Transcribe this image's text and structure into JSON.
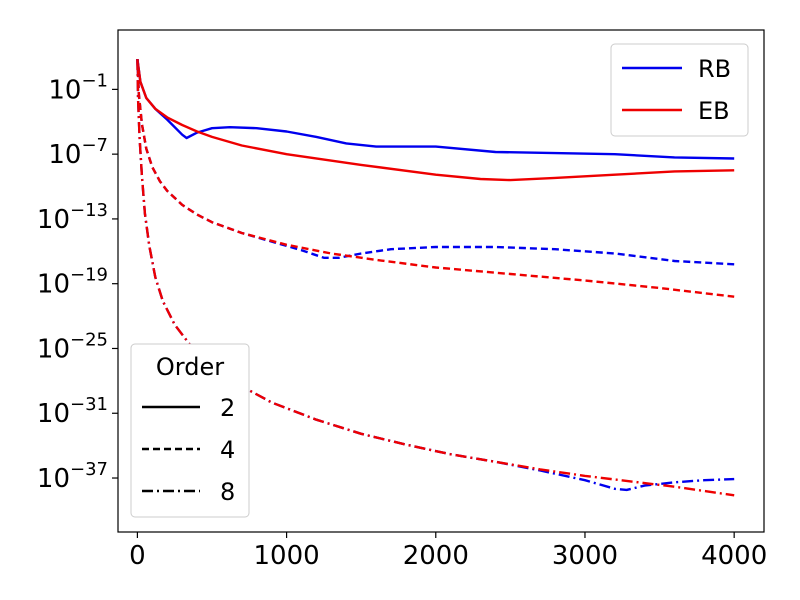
{
  "chart_data": {
    "type": "line",
    "title": "",
    "xlabel": "",
    "ylabel": "",
    "xlim": [
      -130,
      4200
    ],
    "ylog": true,
    "ylim_exponents": [
      -42,
      4.5
    ],
    "x_ticks": [
      0,
      1000,
      2000,
      3000,
      4000
    ],
    "x_tick_labels": [
      "0",
      "1000",
      "2000",
      "3000",
      "4000"
    ],
    "y_ticks": [
      -1,
      -7,
      -13,
      -19,
      -25,
      -31,
      -37
    ],
    "y_tick_labels": [
      {
        "base": "10",
        "exp": "−1"
      },
      {
        "base": "10",
        "exp": "−7"
      },
      {
        "base": "10",
        "exp": "−13"
      },
      {
        "base": "10",
        "exp": "−19"
      },
      {
        "base": "10",
        "exp": "−25"
      },
      {
        "base": "10",
        "exp": "−31"
      },
      {
        "base": "10",
        "exp": "−37"
      }
    ],
    "grid": false,
    "legend_method": {
      "placement": "top-right",
      "entries": [
        {
          "name": "RB",
          "color": "#0000ee"
        },
        {
          "name": "EB",
          "color": "#ee0000"
        }
      ]
    },
    "legend_order": {
      "placement": "bottom-left",
      "title": "Order",
      "entries": [
        {
          "name": "2",
          "style": "solid"
        },
        {
          "name": "4",
          "style": "dashed"
        },
        {
          "name": "8",
          "style": "dashdot"
        }
      ]
    },
    "series": [
      {
        "method": "RB",
        "order": "2",
        "color": "#0000ee",
        "style": "solid",
        "points": [
          [
            0,
            1.8
          ],
          [
            20,
            -0.3
          ],
          [
            60,
            -1.8
          ],
          [
            120,
            -2.8
          ],
          [
            200,
            -3.8
          ],
          [
            300,
            -5.2
          ],
          [
            330,
            -5.5
          ],
          [
            400,
            -5.0
          ],
          [
            500,
            -4.6
          ],
          [
            620,
            -4.5
          ],
          [
            800,
            -4.6
          ],
          [
            1000,
            -4.9
          ],
          [
            1200,
            -5.4
          ],
          [
            1400,
            -6.0
          ],
          [
            1600,
            -6.3
          ],
          [
            2000,
            -6.3
          ],
          [
            2400,
            -6.8
          ],
          [
            2800,
            -6.9
          ],
          [
            3200,
            -7.0
          ],
          [
            3600,
            -7.3
          ],
          [
            4000,
            -7.4
          ]
        ]
      },
      {
        "method": "EB",
        "order": "2",
        "color": "#ee0000",
        "style": "solid",
        "points": [
          [
            0,
            1.8
          ],
          [
            20,
            -0.3
          ],
          [
            60,
            -1.8
          ],
          [
            120,
            -2.8
          ],
          [
            200,
            -3.6
          ],
          [
            300,
            -4.3
          ],
          [
            400,
            -4.9
          ],
          [
            500,
            -5.4
          ],
          [
            700,
            -6.2
          ],
          [
            1000,
            -7.0
          ],
          [
            1500,
            -8.0
          ],
          [
            2000,
            -8.9
          ],
          [
            2300,
            -9.3
          ],
          [
            2500,
            -9.4
          ],
          [
            2800,
            -9.2
          ],
          [
            3200,
            -8.9
          ],
          [
            3600,
            -8.6
          ],
          [
            4000,
            -8.5
          ]
        ]
      },
      {
        "method": "RB",
        "order": "4",
        "color": "#0000ee",
        "style": "dashed",
        "points": [
          [
            0,
            1.8
          ],
          [
            10,
            -1.5
          ],
          [
            30,
            -4.2
          ],
          [
            60,
            -6.5
          ],
          [
            100,
            -8.2
          ],
          [
            150,
            -9.5
          ],
          [
            200,
            -10.4
          ],
          [
            300,
            -11.7
          ],
          [
            400,
            -12.6
          ],
          [
            500,
            -13.3
          ],
          [
            700,
            -14.3
          ],
          [
            900,
            -15.1
          ],
          [
            1100,
            -15.9
          ],
          [
            1250,
            -16.6
          ],
          [
            1350,
            -16.6
          ],
          [
            1500,
            -16.2
          ],
          [
            1700,
            -15.8
          ],
          [
            2000,
            -15.6
          ],
          [
            2400,
            -15.6
          ],
          [
            2800,
            -15.8
          ],
          [
            3200,
            -16.2
          ],
          [
            3600,
            -16.9
          ],
          [
            4000,
            -17.2
          ]
        ]
      },
      {
        "method": "EB",
        "order": "4",
        "color": "#ee0000",
        "style": "dashed",
        "points": [
          [
            0,
            1.8
          ],
          [
            10,
            -1.5
          ],
          [
            30,
            -4.2
          ],
          [
            60,
            -6.5
          ],
          [
            100,
            -8.2
          ],
          [
            150,
            -9.5
          ],
          [
            200,
            -10.4
          ],
          [
            300,
            -11.7
          ],
          [
            400,
            -12.6
          ],
          [
            500,
            -13.3
          ],
          [
            700,
            -14.3
          ],
          [
            1000,
            -15.4
          ],
          [
            1300,
            -16.2
          ],
          [
            1600,
            -16.8
          ],
          [
            2000,
            -17.5
          ],
          [
            2500,
            -18.1
          ],
          [
            3000,
            -18.7
          ],
          [
            3500,
            -19.4
          ],
          [
            4000,
            -20.2
          ]
        ]
      },
      {
        "method": "RB",
        "order": "8",
        "color": "#0000ee",
        "style": "dashdot",
        "points": [
          [
            0,
            1.8
          ],
          [
            5,
            -2.0
          ],
          [
            15,
            -5.5
          ],
          [
            30,
            -9.0
          ],
          [
            50,
            -12.5
          ],
          [
            80,
            -15.5
          ],
          [
            120,
            -18.4
          ],
          [
            170,
            -20.6
          ],
          [
            250,
            -22.8
          ],
          [
            350,
            -24.6
          ],
          [
            500,
            -26.5
          ],
          [
            700,
            -28.5
          ],
          [
            900,
            -30.0
          ],
          [
            1200,
            -31.6
          ],
          [
            1500,
            -32.9
          ],
          [
            1800,
            -33.9
          ],
          [
            2100,
            -34.8
          ],
          [
            2400,
            -35.5
          ],
          [
            2700,
            -36.3
          ],
          [
            3000,
            -37.2
          ],
          [
            3200,
            -38.0
          ],
          [
            3280,
            -38.1
          ],
          [
            3400,
            -37.7
          ],
          [
            3600,
            -37.4
          ],
          [
            3800,
            -37.2
          ],
          [
            4000,
            -37.1
          ]
        ]
      },
      {
        "method": "EB",
        "order": "8",
        "color": "#ee0000",
        "style": "dashdot",
        "points": [
          [
            0,
            1.8
          ],
          [
            5,
            -2.0
          ],
          [
            15,
            -5.5
          ],
          [
            30,
            -9.0
          ],
          [
            50,
            -12.5
          ],
          [
            80,
            -15.5
          ],
          [
            120,
            -18.4
          ],
          [
            170,
            -20.6
          ],
          [
            250,
            -22.8
          ],
          [
            350,
            -24.6
          ],
          [
            500,
            -26.5
          ],
          [
            700,
            -28.5
          ],
          [
            900,
            -30.0
          ],
          [
            1200,
            -31.6
          ],
          [
            1500,
            -32.9
          ],
          [
            1800,
            -33.9
          ],
          [
            2100,
            -34.8
          ],
          [
            2400,
            -35.5
          ],
          [
            2700,
            -36.2
          ],
          [
            3000,
            -36.8
          ],
          [
            3300,
            -37.3
          ],
          [
            3600,
            -37.8
          ],
          [
            4000,
            -38.6
          ]
        ]
      }
    ]
  }
}
